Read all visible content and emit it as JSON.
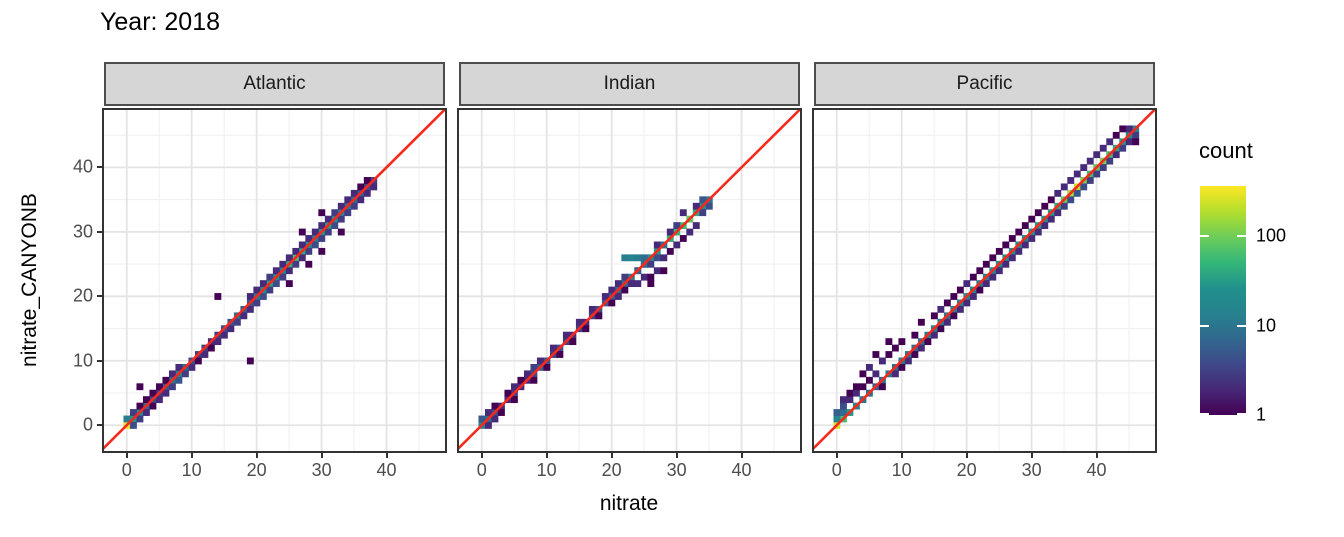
{
  "page": {
    "background": "#ffffff"
  },
  "chart_data": {
    "type": "heatmap",
    "subtype": "bin2d-faceted-scatter",
    "title": "Year: 2018",
    "xlabel": "nitrate",
    "ylabel": "nitrate_CANYONB",
    "x_domain": [
      -3.5,
      49
    ],
    "y_domain": [
      -4,
      48.9
    ],
    "x_ticks": [
      0,
      10,
      20,
      30,
      40
    ],
    "y_ticks": [
      0,
      10,
      20,
      30,
      40
    ],
    "minor_ticks": [
      5,
      15,
      25,
      35,
      45
    ],
    "grid": {
      "major_color": "#e4e4e4",
      "minor_color": "#f0f0f0",
      "panel_bg": "#ffffff",
      "panel_border": "#333333"
    },
    "strip": {
      "bg": "#d6d6d6",
      "border": "#4d4d4d",
      "text_color": "#1a1a1a"
    },
    "abline": {
      "slope": 1,
      "intercept": 0,
      "color": "#f5291d",
      "width": 2.6
    },
    "legend": {
      "title": "count",
      "ticks": [
        1,
        10,
        100
      ],
      "max": 365,
      "position": "right",
      "scale": "log10"
    },
    "viridis": [
      "#440154",
      "#482878",
      "#3e4989",
      "#31688e",
      "#26828e",
      "#21918c",
      "#35b779",
      "#6dcd59",
      "#b4de2c",
      "#fde725"
    ],
    "facets": [
      {
        "label": "Atlantic",
        "diag_start": 0,
        "diag_counts": [
          300,
          45,
          18,
          8,
          4,
          3,
          5,
          10,
          14,
          7,
          4,
          3,
          3,
          2,
          3,
          4,
          5,
          8,
          6,
          5,
          12,
          22,
          35,
          25,
          15,
          45,
          70,
          40,
          22,
          15,
          28,
          35,
          22,
          15,
          10,
          8,
          6,
          4,
          3
        ],
        "extra": [
          [
            0,
            1,
            12
          ],
          [
            1,
            1,
            28
          ],
          [
            1,
            2,
            3
          ],
          [
            2,
            1,
            3
          ],
          [
            1,
            0,
            4
          ],
          [
            2,
            3,
            1
          ],
          [
            3,
            2,
            2
          ],
          [
            2,
            6,
            1
          ],
          [
            3,
            4,
            1
          ],
          [
            4,
            3,
            1
          ],
          [
            4,
            5,
            1
          ],
          [
            5,
            4,
            2
          ],
          [
            5,
            6,
            1
          ],
          [
            6,
            5,
            2
          ],
          [
            6,
            7,
            1
          ],
          [
            7,
            6,
            3
          ],
          [
            7,
            8,
            2
          ],
          [
            8,
            7,
            5
          ],
          [
            8,
            9,
            2
          ],
          [
            9,
            8,
            3
          ],
          [
            10,
            9,
            2
          ],
          [
            11,
            10,
            1
          ],
          [
            12,
            11,
            2
          ],
          [
            13,
            12,
            1
          ],
          [
            14,
            13,
            2
          ],
          [
            14,
            20,
            1
          ],
          [
            15,
            14,
            2
          ],
          [
            16,
            15,
            2
          ],
          [
            17,
            16,
            3
          ],
          [
            18,
            17,
            2
          ],
          [
            19,
            10,
            1
          ],
          [
            19,
            18,
            2
          ],
          [
            20,
            19,
            3
          ],
          [
            19,
            20,
            2
          ],
          [
            21,
            20,
            4
          ],
          [
            20,
            21,
            2
          ],
          [
            22,
            21,
            3
          ],
          [
            21,
            22,
            2
          ],
          [
            23,
            22,
            4
          ],
          [
            22,
            23,
            3
          ],
          [
            24,
            23,
            3
          ],
          [
            23,
            24,
            2
          ],
          [
            25,
            24,
            2
          ],
          [
            24,
            25,
            2
          ],
          [
            25,
            22,
            1
          ],
          [
            26,
            25,
            3
          ],
          [
            25,
            26,
            2
          ],
          [
            27,
            26,
            2
          ],
          [
            26,
            27,
            2
          ],
          [
            28,
            27,
            3
          ],
          [
            27,
            28,
            2
          ],
          [
            28,
            25,
            1
          ],
          [
            29,
            28,
            4
          ],
          [
            28,
            29,
            2
          ],
          [
            30,
            29,
            3
          ],
          [
            29,
            30,
            2
          ],
          [
            30,
            27,
            1
          ],
          [
            27,
            30,
            1
          ],
          [
            31,
            30,
            3
          ],
          [
            30,
            31,
            2
          ],
          [
            32,
            31,
            4
          ],
          [
            31,
            32,
            2
          ],
          [
            33,
            32,
            3
          ],
          [
            32,
            33,
            3
          ],
          [
            33,
            30,
            1
          ],
          [
            30,
            33,
            1
          ],
          [
            34,
            33,
            3
          ],
          [
            33,
            34,
            2
          ],
          [
            35,
            34,
            3
          ],
          [
            34,
            35,
            2
          ],
          [
            36,
            35,
            2
          ],
          [
            35,
            36,
            2
          ],
          [
            37,
            36,
            2
          ],
          [
            36,
            37,
            1
          ],
          [
            38,
            37,
            2
          ],
          [
            37,
            38,
            1
          ]
        ]
      },
      {
        "label": "Indian",
        "diag_start": 0,
        "diag_counts": [
          15,
          8,
          4,
          2,
          2,
          3,
          2,
          2,
          4,
          6,
          5,
          3,
          4,
          3,
          2,
          3,
          2,
          3,
          4,
          5,
          6,
          8,
          10,
          12,
          15,
          20,
          25,
          30,
          35,
          40,
          50,
          60,
          85,
          40,
          20,
          10
        ],
        "extra": [
          [
            0,
            1,
            5
          ],
          [
            1,
            0,
            2
          ],
          [
            1,
            2,
            2
          ],
          [
            2,
            1,
            2
          ],
          [
            2,
            3,
            1
          ],
          [
            3,
            2,
            1
          ],
          [
            4,
            5,
            1
          ],
          [
            5,
            4,
            1
          ],
          [
            5,
            6,
            2
          ],
          [
            6,
            7,
            1
          ],
          [
            7,
            8,
            2
          ],
          [
            8,
            7,
            1
          ],
          [
            8,
            9,
            3
          ],
          [
            9,
            10,
            2
          ],
          [
            10,
            9,
            1
          ],
          [
            11,
            12,
            2
          ],
          [
            12,
            11,
            1
          ],
          [
            13,
            14,
            2
          ],
          [
            14,
            13,
            1
          ],
          [
            15,
            16,
            2
          ],
          [
            16,
            15,
            1
          ],
          [
            17,
            18,
            2
          ],
          [
            18,
            17,
            1
          ],
          [
            19,
            20,
            2
          ],
          [
            20,
            19,
            1
          ],
          [
            21,
            20,
            2
          ],
          [
            20,
            21,
            2
          ],
          [
            22,
            21,
            1
          ],
          [
            21,
            22,
            2
          ],
          [
            23,
            22,
            2
          ],
          [
            22,
            23,
            3
          ],
          [
            22,
            26,
            12
          ],
          [
            23,
            26,
            15
          ],
          [
            24,
            26,
            12
          ],
          [
            25,
            26,
            8
          ],
          [
            24,
            24,
            6
          ],
          [
            25,
            25,
            8
          ],
          [
            26,
            25,
            3
          ],
          [
            25,
            23,
            2
          ],
          [
            26,
            23,
            1
          ],
          [
            27,
            24,
            2
          ],
          [
            28,
            24,
            1
          ],
          [
            27,
            26,
            4
          ],
          [
            28,
            26,
            2
          ],
          [
            27,
            28,
            2
          ],
          [
            28,
            28,
            8
          ],
          [
            29,
            27,
            1
          ],
          [
            30,
            28,
            2
          ],
          [
            29,
            30,
            2
          ],
          [
            31,
            29,
            1
          ],
          [
            30,
            31,
            3
          ],
          [
            32,
            30,
            2
          ],
          [
            33,
            31,
            2
          ],
          [
            31,
            33,
            2
          ],
          [
            34,
            33,
            3
          ],
          [
            33,
            34,
            2
          ],
          [
            35,
            34,
            4
          ],
          [
            34,
            35,
            5
          ],
          [
            26,
            22,
            1
          ],
          [
            24,
            22,
            2
          ]
        ]
      },
      {
        "label": "Pacific",
        "diag_start": 0,
        "diag_counts": [
          260,
          60,
          30,
          15,
          10,
          8,
          6,
          8,
          10,
          8,
          12,
          10,
          8,
          10,
          12,
          15,
          12,
          10,
          12,
          15,
          18,
          15,
          12,
          15,
          18,
          20,
          25,
          20,
          18,
          20,
          25,
          30,
          25,
          30,
          40,
          90,
          160,
          220,
          110,
          60,
          85,
          110,
          60,
          40,
          30,
          20,
          15
        ],
        "extra": [
          [
            0,
            1,
            15
          ],
          [
            0,
            2,
            6
          ],
          [
            1,
            2,
            8
          ],
          [
            1,
            3,
            4
          ],
          [
            1,
            4,
            2
          ],
          [
            2,
            4,
            2
          ],
          [
            2,
            5,
            1
          ],
          [
            3,
            5,
            2
          ],
          [
            3,
            6,
            1
          ],
          [
            4,
            6,
            1
          ],
          [
            4,
            8,
            1
          ],
          [
            5,
            7,
            1
          ],
          [
            5,
            9,
            2
          ],
          [
            6,
            8,
            2
          ],
          [
            6,
            11,
            1
          ],
          [
            7,
            10,
            2
          ],
          [
            8,
            11,
            1
          ],
          [
            8,
            13,
            1
          ],
          [
            9,
            12,
            1
          ],
          [
            7,
            6,
            1
          ],
          [
            9,
            8,
            2
          ],
          [
            10,
            9,
            1
          ],
          [
            11,
            10,
            2
          ],
          [
            12,
            11,
            1
          ],
          [
            13,
            12,
            2
          ],
          [
            10,
            13,
            1
          ],
          [
            12,
            14,
            1
          ],
          [
            14,
            13,
            1
          ],
          [
            15,
            14,
            2
          ],
          [
            16,
            15,
            1
          ],
          [
            13,
            16,
            1
          ],
          [
            17,
            16,
            2
          ],
          [
            15,
            17,
            1
          ],
          [
            18,
            17,
            1
          ],
          [
            16,
            18,
            2
          ],
          [
            19,
            18,
            2
          ],
          [
            17,
            19,
            1
          ],
          [
            20,
            19,
            2
          ],
          [
            18,
            20,
            1
          ],
          [
            21,
            20,
            2
          ],
          [
            19,
            21,
            1
          ],
          [
            22,
            21,
            1
          ],
          [
            20,
            22,
            2
          ],
          [
            23,
            22,
            2
          ],
          [
            21,
            23,
            1
          ],
          [
            24,
            23,
            2
          ],
          [
            22,
            24,
            1
          ],
          [
            25,
            24,
            2
          ],
          [
            23,
            25,
            1
          ],
          [
            26,
            25,
            2
          ],
          [
            24,
            26,
            1
          ],
          [
            27,
            26,
            2
          ],
          [
            25,
            27,
            1
          ],
          [
            28,
            27,
            2
          ],
          [
            26,
            28,
            1
          ],
          [
            29,
            28,
            2
          ],
          [
            27,
            29,
            1
          ],
          [
            30,
            29,
            2
          ],
          [
            28,
            30,
            1
          ],
          [
            31,
            30,
            2
          ],
          [
            29,
            31,
            1
          ],
          [
            32,
            31,
            2
          ],
          [
            30,
            32,
            1
          ],
          [
            33,
            32,
            2
          ],
          [
            31,
            33,
            1
          ],
          [
            34,
            33,
            2
          ],
          [
            32,
            34,
            1
          ],
          [
            35,
            34,
            3
          ],
          [
            33,
            35,
            1
          ],
          [
            36,
            35,
            4
          ],
          [
            34,
            36,
            2
          ],
          [
            37,
            36,
            5
          ],
          [
            35,
            37,
            2
          ],
          [
            38,
            37,
            4
          ],
          [
            36,
            38,
            2
          ],
          [
            39,
            38,
            3
          ],
          [
            37,
            39,
            2
          ],
          [
            40,
            39,
            3
          ],
          [
            38,
            40,
            2
          ],
          [
            41,
            40,
            3
          ],
          [
            39,
            41,
            2
          ],
          [
            42,
            41,
            3
          ],
          [
            40,
            42,
            2
          ],
          [
            43,
            42,
            2
          ],
          [
            41,
            43,
            2
          ],
          [
            44,
            43,
            3
          ],
          [
            42,
            44,
            2
          ],
          [
            45,
            44,
            2
          ],
          [
            43,
            45,
            1
          ],
          [
            46,
            45,
            3
          ],
          [
            44,
            46,
            1
          ],
          [
            45,
            46,
            2
          ],
          [
            46,
            44,
            1
          ]
        ]
      }
    ]
  }
}
